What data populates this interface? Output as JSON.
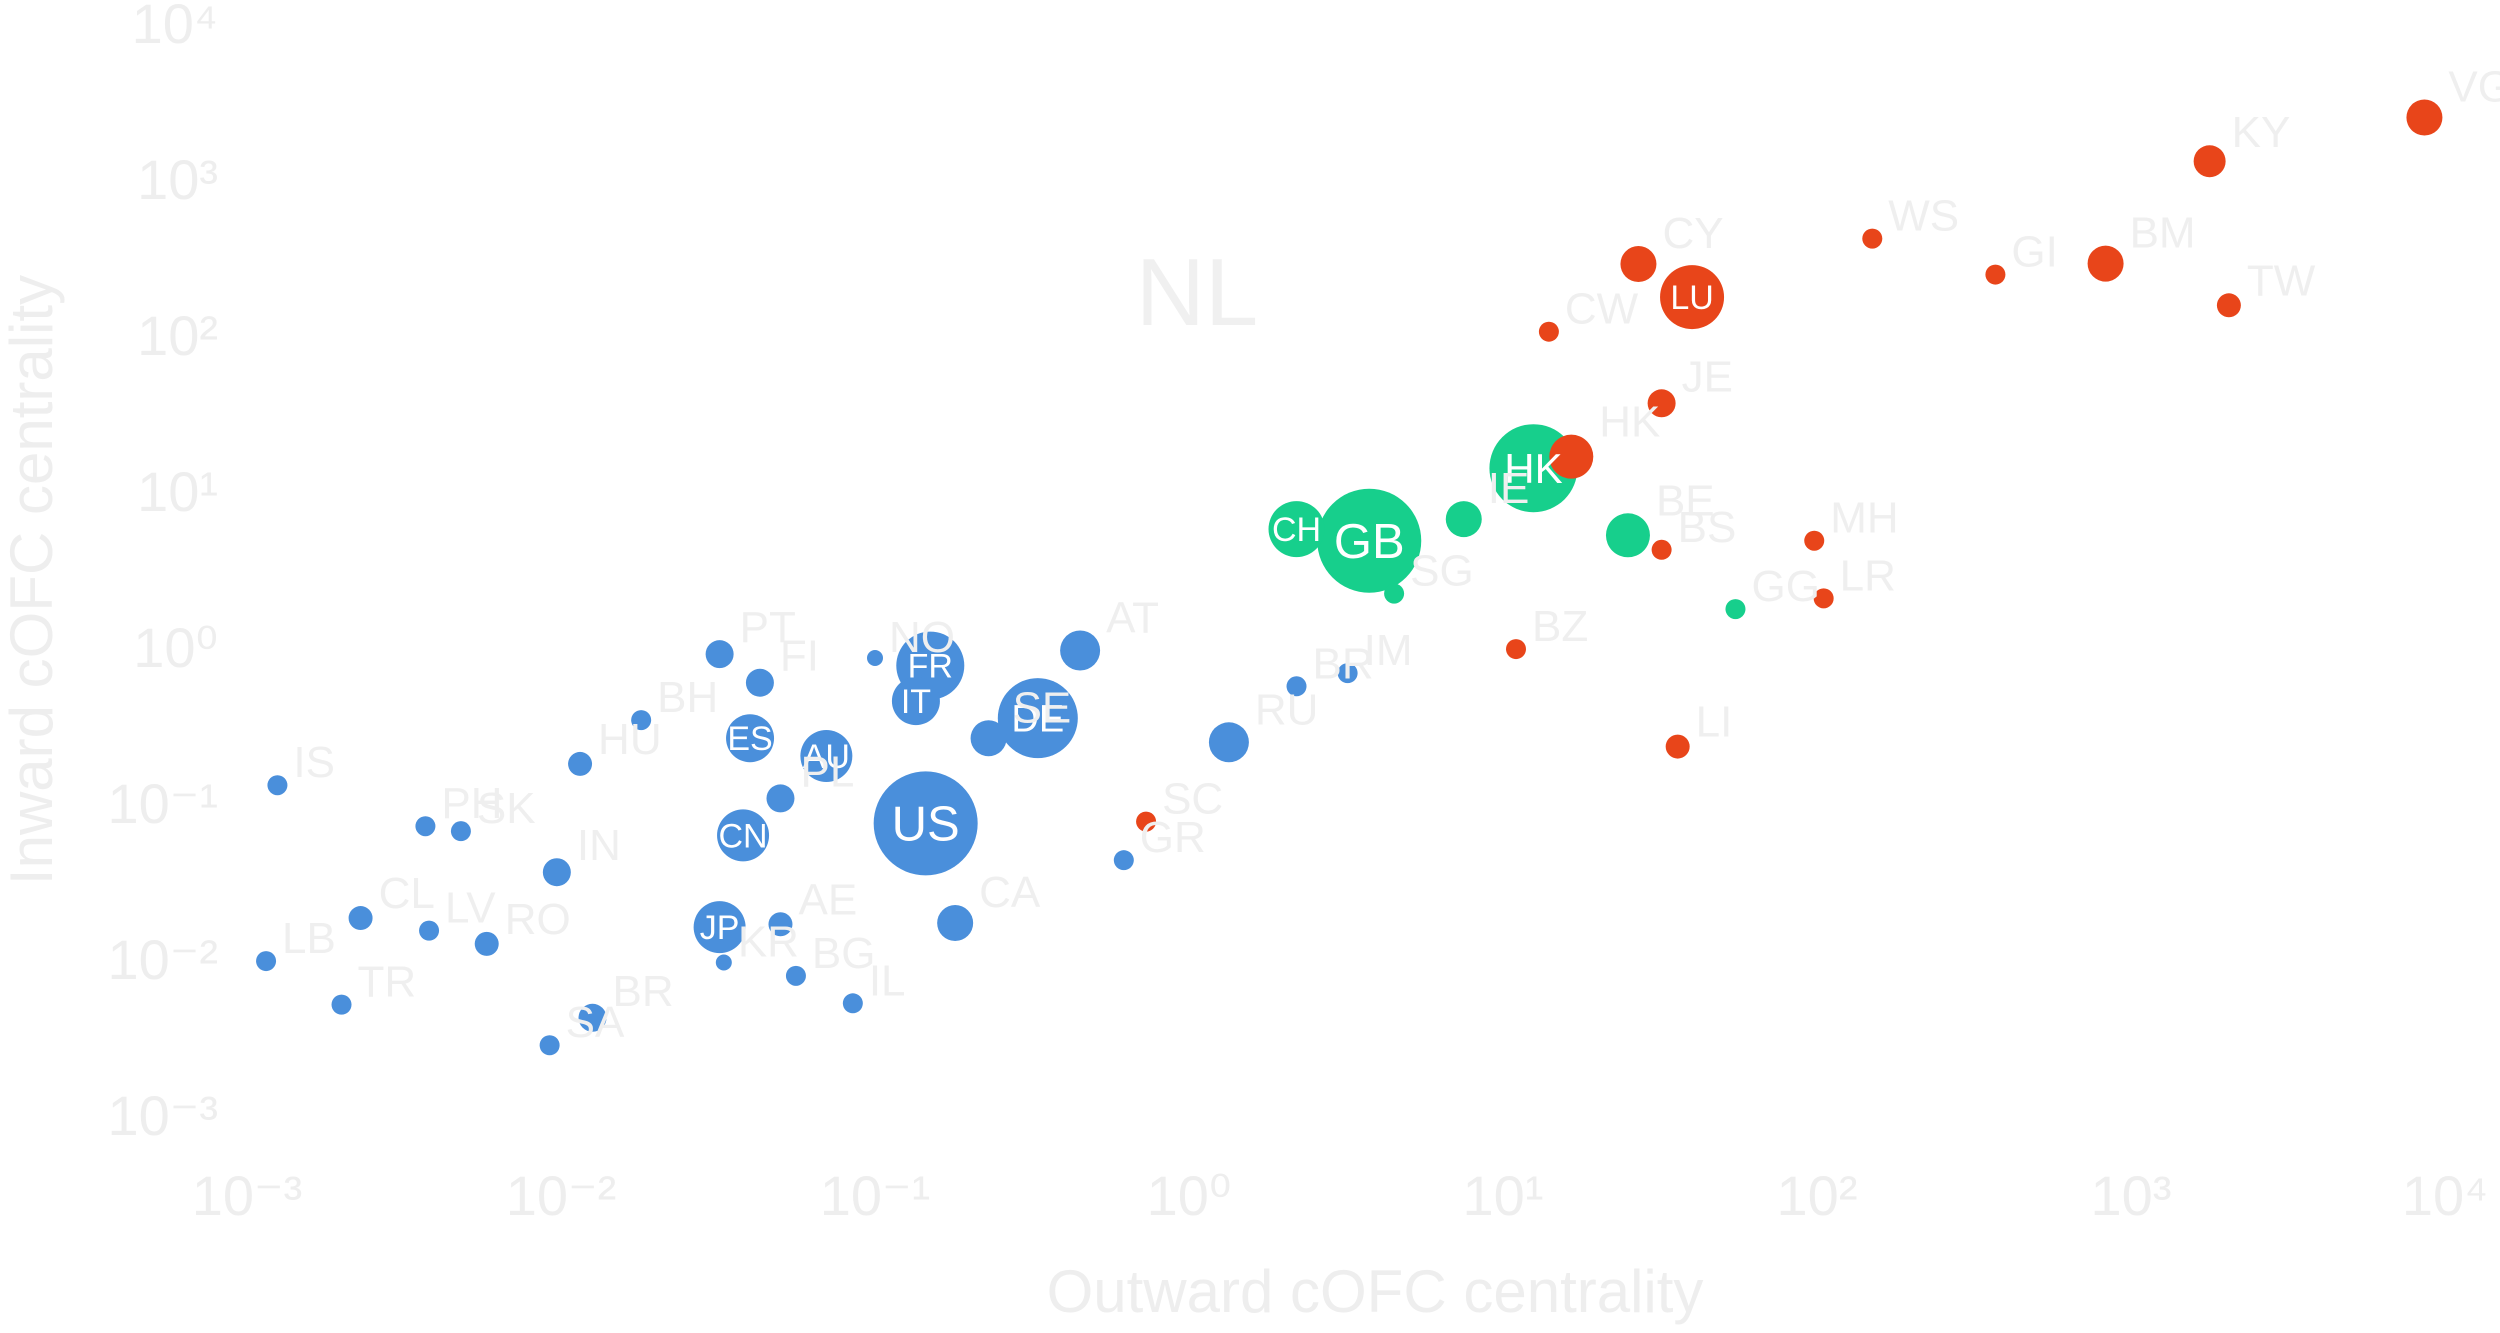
{
  "chart_data": {
    "type": "scatter",
    "xlabel": "Outward cOFC centrality",
    "ylabel": "Inward cOFC centrality",
    "xscale": "log",
    "yscale": "log",
    "xlim": [
      0.001,
      10000
    ],
    "ylim": [
      0.001,
      10000
    ],
    "x_ticks": [
      "10⁻³",
      "10⁻²",
      "10⁻¹",
      "10⁰",
      "10¹",
      "10²",
      "10³",
      "10⁴"
    ],
    "y_ticks": [
      "10⁻³",
      "10⁻²",
      "10⁻¹",
      "10⁰",
      "10¹",
      "10²",
      "10³",
      "10⁴"
    ],
    "grid": false,
    "legend": "none",
    "annotations": [
      {
        "text": "NL",
        "x": 1.06,
        "y": 186
      }
    ],
    "colors": {
      "blue": "#4a8fdb",
      "green": "#17cf8c",
      "red": "#e8451a"
    },
    "points": [
      {
        "label": "US",
        "x": 0.145,
        "y": 0.074,
        "size": 52,
        "color": "blue"
      },
      {
        "label": "JP",
        "x": 0.032,
        "y": 0.016,
        "size": 26,
        "color": "blue"
      },
      {
        "label": "DE",
        "x": 0.33,
        "y": 0.35,
        "size": 40,
        "color": "blue"
      },
      {
        "label": "FR",
        "x": 0.15,
        "y": 0.76,
        "size": 34,
        "color": "blue"
      },
      {
        "label": "IT",
        "x": 0.135,
        "y": 0.45,
        "size": 24,
        "color": "blue"
      },
      {
        "label": "ES",
        "x": 0.04,
        "y": 0.26,
        "size": 24,
        "color": "blue"
      },
      {
        "label": "AU",
        "x": 0.07,
        "y": 0.2,
        "size": 26,
        "color": "blue"
      },
      {
        "label": "CN",
        "x": 0.038,
        "y": 0.062,
        "size": 26,
        "color": "blue"
      },
      {
        "label": "KR",
        "x": 0.033,
        "y": 0.0095,
        "size": 8,
        "color": "blue"
      },
      {
        "label": "CA",
        "x": 0.18,
        "y": 0.017,
        "size": 18,
        "color": "blue"
      },
      {
        "label": "SE",
        "x": 0.23,
        "y": 0.26,
        "size": 18,
        "color": "blue"
      },
      {
        "label": "AT",
        "x": 0.45,
        "y": 0.95,
        "size": 20,
        "color": "blue"
      },
      {
        "label": "PT",
        "x": 0.032,
        "y": 0.9,
        "size": 14,
        "color": "blue"
      },
      {
        "label": "NO",
        "x": 0.1,
        "y": 0.85,
        "size": 8,
        "color": "blue"
      },
      {
        "label": "FI",
        "x": 0.043,
        "y": 0.59,
        "size": 14,
        "color": "blue"
      },
      {
        "label": "HU",
        "x": 0.0115,
        "y": 0.178,
        "size": 12,
        "color": "blue"
      },
      {
        "label": "BH",
        "x": 0.018,
        "y": 0.34,
        "size": 10,
        "color": "blue"
      },
      {
        "label": "IS",
        "x": 0.00125,
        "y": 0.13,
        "size": 10,
        "color": "blue"
      },
      {
        "label": "PH",
        "x": 0.0037,
        "y": 0.071,
        "size": 10,
        "color": "blue"
      },
      {
        "label": "SK",
        "x": 0.0048,
        "y": 0.066,
        "size": 10,
        "color": "blue"
      },
      {
        "label": "IN",
        "x": 0.0097,
        "y": 0.036,
        "size": 14,
        "color": "blue"
      },
      {
        "label": "PL",
        "x": 0.05,
        "y": 0.107,
        "size": 14,
        "color": "blue"
      },
      {
        "label": "AE",
        "x": 0.05,
        "y": 0.0167,
        "size": 12,
        "color": "blue"
      },
      {
        "label": "CL",
        "x": 0.0023,
        "y": 0.0183,
        "size": 12,
        "color": "blue"
      },
      {
        "label": "LV",
        "x": 0.0038,
        "y": 0.0152,
        "size": 10,
        "color": "blue"
      },
      {
        "label": "RO",
        "x": 0.0058,
        "y": 0.0125,
        "size": 12,
        "color": "blue"
      },
      {
        "label": "LB",
        "x": 0.00115,
        "y": 0.0097,
        "size": 10,
        "color": "blue"
      },
      {
        "label": "TR",
        "x": 0.002,
        "y": 0.0051,
        "size": 10,
        "color": "blue"
      },
      {
        "label": "BR",
        "x": 0.0126,
        "y": 0.0042,
        "size": 14,
        "color": "blue"
      },
      {
        "label": "SA",
        "x": 0.0092,
        "y": 0.0028,
        "size": 10,
        "color": "blue"
      },
      {
        "label": "BG",
        "x": 0.056,
        "y": 0.0078,
        "size": 10,
        "color": "blue"
      },
      {
        "label": "IL",
        "x": 0.085,
        "y": 0.0052,
        "size": 10,
        "color": "blue"
      },
      {
        "label": "RU",
        "x": 1.34,
        "y": 0.245,
        "size": 20,
        "color": "blue"
      },
      {
        "label": "BR",
        "x": 2.2,
        "y": 0.56,
        "size": 10,
        "color": "blue"
      },
      {
        "label": "IM",
        "x": 3.2,
        "y": 0.68,
        "size": 10,
        "color": "blue"
      },
      {
        "label": "GR",
        "x": 0.62,
        "y": 0.043,
        "size": 10,
        "color": "blue"
      },
      {
        "label": "HK",
        "x": 12.5,
        "y": 14,
        "size": 44,
        "color": "green"
      },
      {
        "label": "GB",
        "x": 3.75,
        "y": 4.8,
        "size": 52,
        "color": "green"
      },
      {
        "label": "CH",
        "x": 2.2,
        "y": 5.7,
        "size": 28,
        "color": "green"
      },
      {
        "label": "IE",
        "x": 7.5,
        "y": 6.6,
        "size": 18,
        "color": "green"
      },
      {
        "label": "BE",
        "x": 25,
        "y": 5.2,
        "size": 22,
        "color": "green"
      },
      {
        "label": "SG",
        "x": 4.5,
        "y": 2.2,
        "size": 10,
        "color": "green"
      },
      {
        "label": "GG",
        "x": 55,
        "y": 1.75,
        "size": 10,
        "color": "green"
      },
      {
        "label": "VG",
        "x": 8600,
        "y": 2480,
        "size": 18,
        "color": "red"
      },
      {
        "label": "KY",
        "x": 1780,
        "y": 1300,
        "size": 16,
        "color": "red"
      },
      {
        "label": "WS",
        "x": 150,
        "y": 415,
        "size": 10,
        "color": "red"
      },
      {
        "label": "GI",
        "x": 370,
        "y": 244,
        "size": 10,
        "color": "red"
      },
      {
        "label": "BM",
        "x": 830,
        "y": 287,
        "size": 18,
        "color": "red"
      },
      {
        "label": "TW",
        "x": 2050,
        "y": 155,
        "size": 12,
        "color": "red"
      },
      {
        "label": "CY",
        "x": 27,
        "y": 285,
        "size": 18,
        "color": "red"
      },
      {
        "label": "LU",
        "x": 40,
        "y": 175,
        "size": 32,
        "color": "red"
      },
      {
        "label": "CW",
        "x": 14,
        "y": 105,
        "size": 10,
        "color": "red"
      },
      {
        "label": "JE",
        "x": 32,
        "y": 36.5,
        "size": 14,
        "color": "red"
      },
      {
        "label": "HK",
        "x": 16.5,
        "y": 16.6,
        "size": 22,
        "color": "red"
      },
      {
        "label": "BS",
        "x": 32,
        "y": 4.2,
        "size": 10,
        "color": "red"
      },
      {
        "label": "MH",
        "x": 98,
        "y": 4.8,
        "size": 10,
        "color": "red"
      },
      {
        "label": "LR",
        "x": 105,
        "y": 2.05,
        "size": 10,
        "color": "red"
      },
      {
        "label": "BZ",
        "x": 11,
        "y": 0.97,
        "size": 10,
        "color": "red"
      },
      {
        "label": "LI",
        "x": 36,
        "y": 0.23,
        "size": 12,
        "color": "red"
      },
      {
        "label": "SC",
        "x": 0.73,
        "y": 0.076,
        "size": 10,
        "color": "red"
      }
    ]
  }
}
